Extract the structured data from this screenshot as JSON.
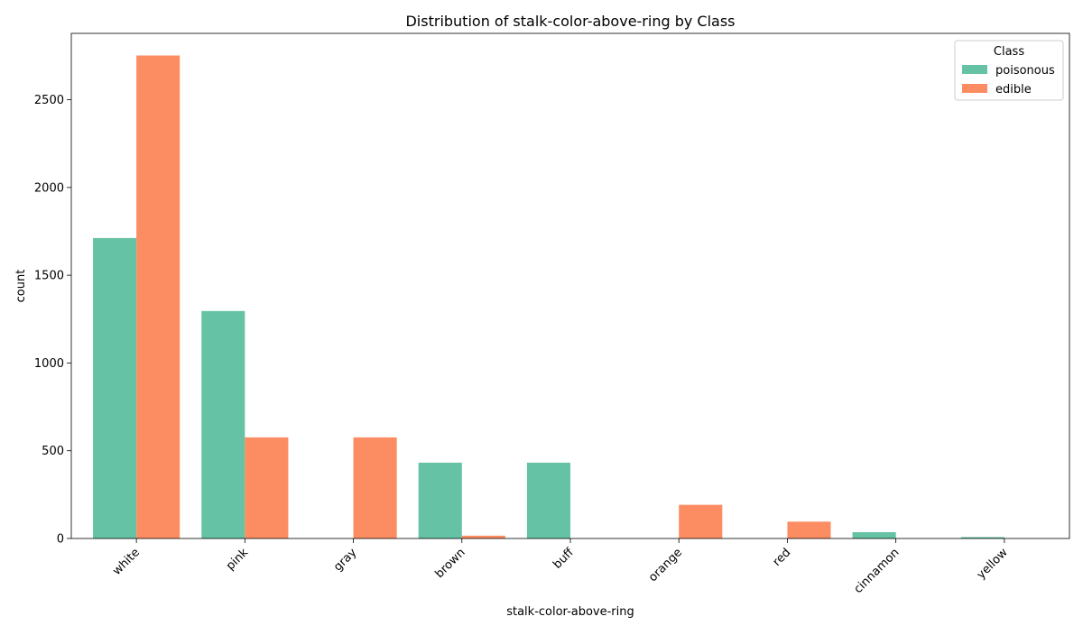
{
  "chart_data": {
    "type": "bar",
    "title": "Distribution of stalk-color-above-ring by Class",
    "xlabel": "stalk-color-above-ring",
    "ylabel": "count",
    "categories": [
      "white",
      "pink",
      "gray",
      "brown",
      "buff",
      "orange",
      "red",
      "cinnamon",
      "yellow"
    ],
    "series": [
      {
        "name": "poisonous",
        "color": "#66c2a5",
        "values": [
          1712,
          1296,
          0,
          432,
          432,
          0,
          0,
          36,
          8
        ]
      },
      {
        "name": "edible",
        "color": "#fc8d62",
        "values": [
          2752,
          576,
          576,
          16,
          0,
          192,
          96,
          0,
          0
        ]
      }
    ],
    "ylim": [
      0,
      2878
    ],
    "yticks": [
      0,
      500,
      1000,
      1500,
      2000,
      2500
    ],
    "grid": false,
    "legend": {
      "title": "Class",
      "placement": "top-right"
    }
  }
}
